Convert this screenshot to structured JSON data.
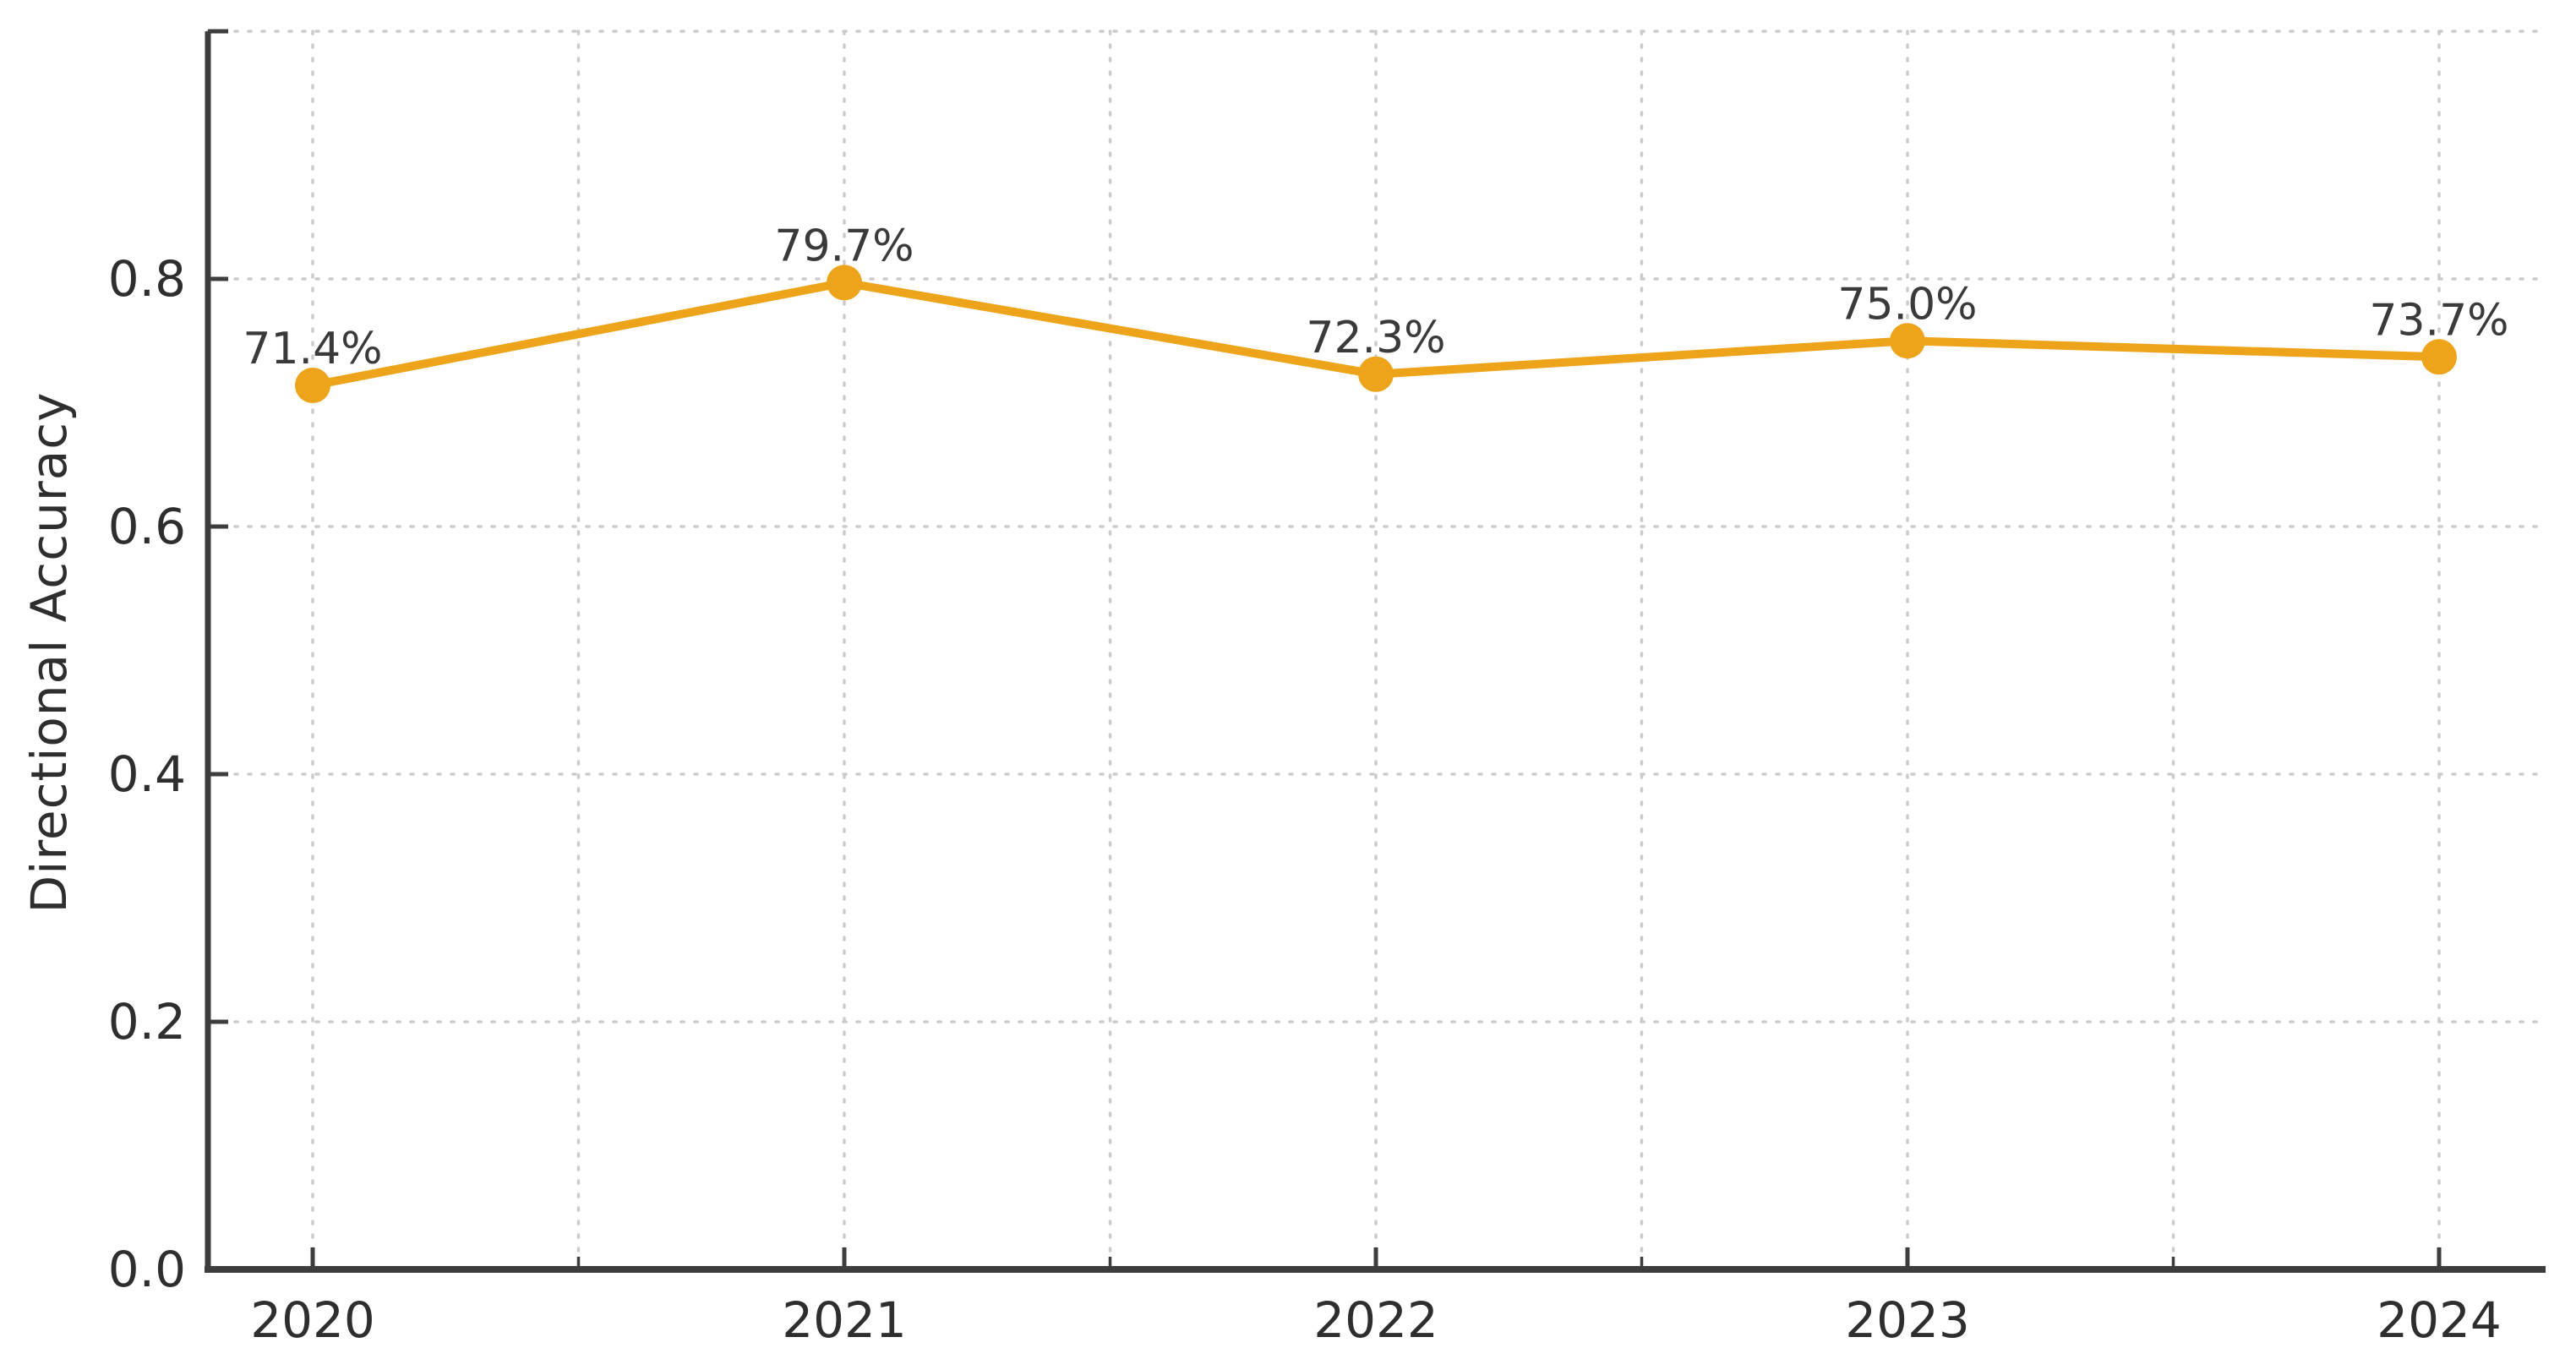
{
  "chart_data": {
    "type": "line",
    "title": "",
    "xlabel": "",
    "ylabel": "Directional Accuracy",
    "x": [
      2020,
      2021,
      2022,
      2023,
      2024
    ],
    "xtick_labels": [
      "2020",
      "2021",
      "2022",
      "2023",
      "2024"
    ],
    "series": [
      {
        "name": "Directional Accuracy",
        "values": [
          0.714,
          0.797,
          0.723,
          0.75,
          0.737
        ],
        "point_labels": [
          "71.4%",
          "79.7%",
          "72.3%",
          "75.0%",
          "73.7%"
        ]
      }
    ],
    "ylim": [
      0.0,
      1.0
    ],
    "yticks": [
      0.0,
      0.2,
      0.4,
      0.6,
      0.8
    ],
    "ytick_labels": [
      "0.0",
      "0.2",
      "0.4",
      "0.6",
      "0.8"
    ],
    "grid": "on",
    "grid_line_style": "dotted",
    "x_minor_ticks": "half-year",
    "legend": "none",
    "marker": "circle"
  },
  "colors": {
    "line": "#EDA41B",
    "grid": "#CBCBCB",
    "spine": "#3D3D3D",
    "tick_label": "#2E2E2E",
    "point_label": "#3A3A3A",
    "background": "#FFFFFF"
  }
}
